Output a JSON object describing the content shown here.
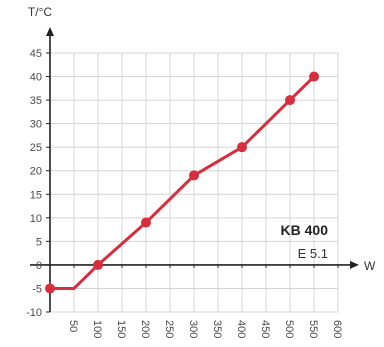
{
  "chart_data": {
    "type": "line",
    "xlabel": "W",
    "ylabel": "T/°C",
    "xlim": [
      0,
      600
    ],
    "ylim": [
      -10,
      45
    ],
    "x_ticks": [
      50,
      100,
      150,
      200,
      250,
      300,
      350,
      400,
      450,
      500,
      550,
      600
    ],
    "y_ticks": [
      -10,
      -5,
      0,
      5,
      10,
      15,
      20,
      25,
      30,
      35,
      40,
      45
    ],
    "grid": true,
    "series": [
      {
        "color": "#d62e3c",
        "x": [
          0,
          50,
          100,
          200,
          300,
          400,
          500,
          550
        ],
        "y": [
          -5,
          -5,
          0,
          9,
          19,
          25,
          35,
          40
        ],
        "marked": [
          true,
          false,
          true,
          true,
          true,
          true,
          true,
          true
        ]
      }
    ],
    "annotations": {
      "model": "KB 400",
      "code": "E 5.1"
    },
    "colors": {
      "axis": "#222222",
      "grid": "#d4d4d4",
      "line": "#d62e3c"
    }
  }
}
